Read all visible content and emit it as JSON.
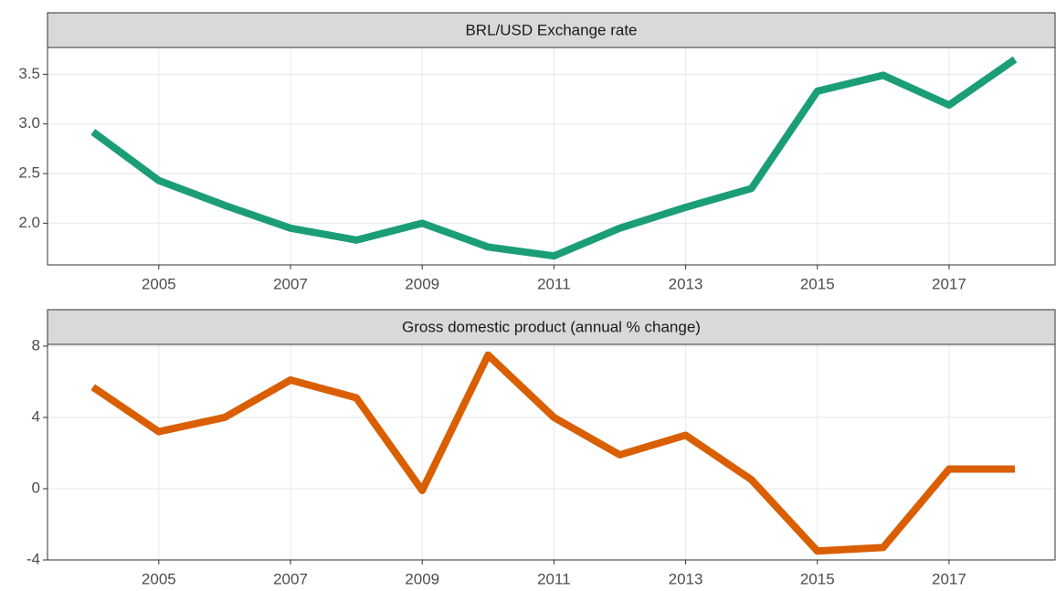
{
  "chart_data": [
    {
      "type": "line",
      "title": "BRL/USD Exchange rate",
      "x": [
        2004,
        2005,
        2006,
        2007,
        2008,
        2009,
        2010,
        2011,
        2012,
        2013,
        2014,
        2015,
        2016,
        2017,
        2018
      ],
      "series": [
        {
          "color": "#1b9e77",
          "values": [
            2.92,
            2.43,
            2.18,
            1.95,
            1.83,
            2.0,
            1.76,
            1.67,
            1.95,
            2.16,
            2.35,
            3.33,
            3.49,
            3.19,
            3.65
          ]
        }
      ],
      "xlim": [
        2003.31,
        2018.61
      ],
      "xticks": [
        2005,
        2007,
        2009,
        2011,
        2013,
        2015,
        2017
      ],
      "ylim": [
        1.58,
        3.77
      ],
      "yticks": [
        {
          "value": 2,
          "label": "2.0"
        },
        2.5,
        {
          "value": 3,
          "label": "3.0"
        },
        3.5
      ],
      "grid": true
    },
    {
      "type": "line",
      "title": "Gross domestic product (annual % change)",
      "x": [
        2004,
        2005,
        2006,
        2007,
        2008,
        2009,
        2010,
        2011,
        2012,
        2013,
        2014,
        2015,
        2016,
        2017,
        2018
      ],
      "series": [
        {
          "color": "#d95f02",
          "values": [
            5.7,
            3.2,
            4.0,
            6.1,
            5.1,
            -0.1,
            7.5,
            4.0,
            1.9,
            3.0,
            0.5,
            -3.5,
            -3.3,
            1.1,
            1.1
          ]
        }
      ],
      "xlim": [
        2003.31,
        2018.61
      ],
      "xticks": [
        2005,
        2007,
        2009,
        2011,
        2013,
        2015,
        2017
      ],
      "ylim": [
        -4,
        8.1
      ],
      "yticks": [
        -4,
        0,
        4,
        8
      ],
      "grid": true
    }
  ]
}
